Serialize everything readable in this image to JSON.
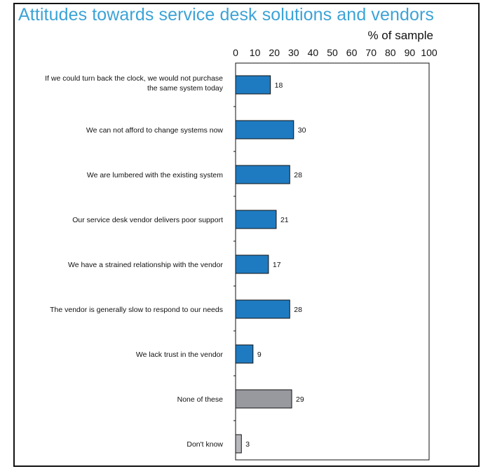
{
  "chart_data": {
    "type": "bar",
    "orientation": "horizontal",
    "title": "Attitudes towards service desk solutions and vendors",
    "xlabel": "% of sample",
    "ylabel": "",
    "xlim": [
      0,
      100
    ],
    "x_ticks": [
      "0",
      "10",
      "20",
      "30",
      "40",
      "50",
      "60",
      "70",
      "80",
      "90",
      "100"
    ],
    "grid": false,
    "categories": [
      [
        "If we could turn back the clock, we would not purchase",
        "the same system today"
      ],
      [
        "We can not afford to change systems now"
      ],
      [
        "We are lumbered with the existing system"
      ],
      [
        "Our service desk vendor delivers poor support"
      ],
      [
        "We have a strained relationship with the vendor"
      ],
      [
        "The vendor is generally slow to respond to our needs"
      ],
      [
        "We lack trust in the vendor"
      ],
      [
        "None of these"
      ],
      [
        "Don't know"
      ]
    ],
    "values": [
      18,
      30,
      28,
      21,
      17,
      28,
      9,
      29,
      3
    ],
    "bar_colors": [
      "#1f7bc1",
      "#1f7bc1",
      "#1f7bc1",
      "#1f7bc1",
      "#1f7bc1",
      "#1f7bc1",
      "#1f7bc1",
      "#98999e",
      "#b7b8bc"
    ]
  }
}
